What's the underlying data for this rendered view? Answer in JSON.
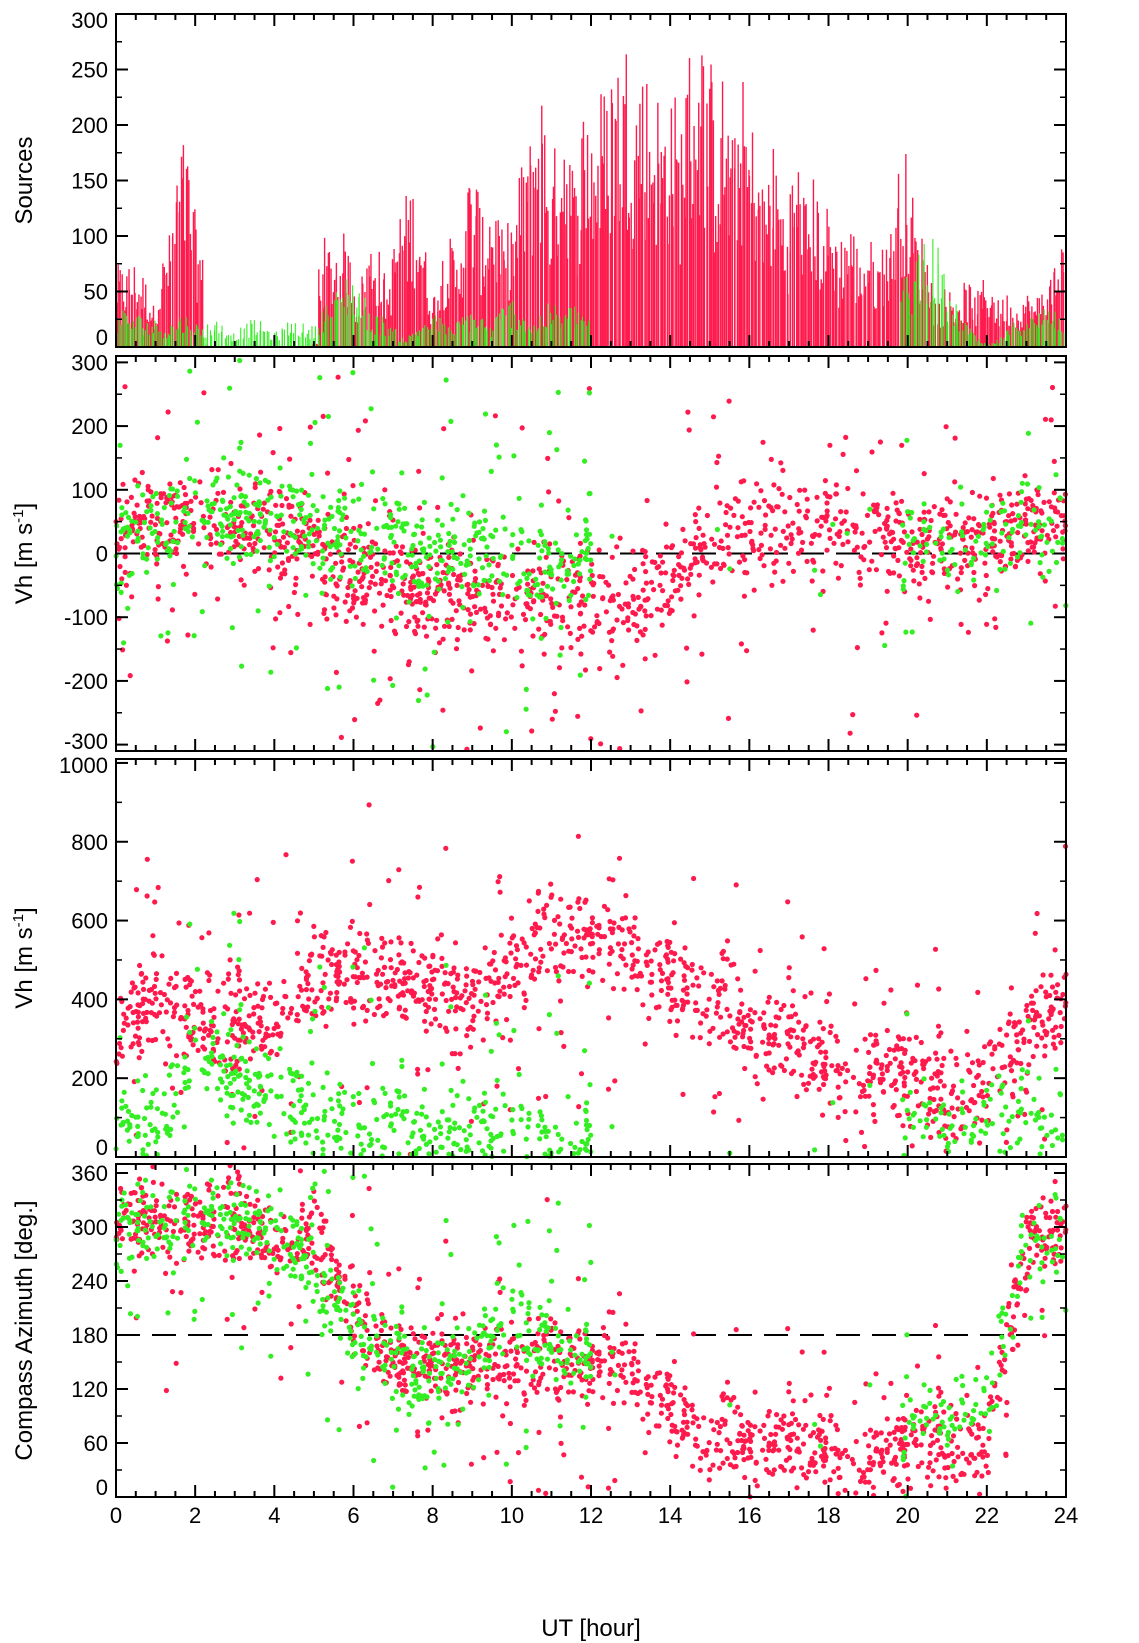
{
  "colors": {
    "primary": "#ff1a4d",
    "secondary": "#33ee22",
    "axis": "#000000"
  },
  "chart_data": [
    {
      "type": "bar",
      "ylabel": "Sources",
      "xlim": [
        0,
        24
      ],
      "ylim": [
        0,
        300
      ],
      "yticks": [
        "0",
        "50",
        "100",
        "150",
        "200",
        "250",
        "300"
      ],
      "series": [
        {
          "color": "#ff1a4d",
          "peaks": [
            [
              0.1,
              75
            ],
            [
              0.4,
              80
            ],
            [
              0.6,
              70
            ],
            [
              1.4,
              105
            ],
            [
              1.7,
              190
            ],
            [
              1.9,
              125
            ],
            [
              5.3,
              100
            ],
            [
              5.7,
              105
            ],
            [
              6.5,
              100
            ],
            [
              7.3,
              140
            ],
            [
              7.5,
              150
            ],
            [
              8.4,
              100
            ],
            [
              9.0,
              165
            ],
            [
              9.5,
              145
            ],
            [
              10.0,
              120
            ],
            [
              10.4,
              195
            ],
            [
              10.7,
              245
            ],
            [
              11.3,
              230
            ],
            [
              11.9,
              235
            ],
            [
              12.3,
              240
            ],
            [
              12.6,
              280
            ],
            [
              12.9,
              285
            ],
            [
              13.3,
              270
            ],
            [
              13.6,
              245
            ],
            [
              14.0,
              250
            ],
            [
              14.5,
              275
            ],
            [
              14.7,
              300
            ],
            [
              14.9,
              285
            ],
            [
              15.3,
              250
            ],
            [
              15.8,
              245
            ],
            [
              16.1,
              205
            ],
            [
              16.6,
              185
            ],
            [
              17.2,
              175
            ],
            [
              17.6,
              155
            ],
            [
              18.0,
              130
            ],
            [
              18.5,
              120
            ],
            [
              19.0,
              100
            ],
            [
              19.5,
              110
            ],
            [
              19.9,
              180
            ],
            [
              20.3,
              105
            ],
            [
              21.0,
              55
            ],
            [
              21.5,
              60
            ],
            [
              22.0,
              65
            ],
            [
              22.5,
              50
            ],
            [
              23.0,
              50
            ],
            [
              23.5,
              60
            ],
            [
              23.9,
              100
            ]
          ]
        },
        {
          "color": "#33ee22",
          "peaks": [
            [
              0.2,
              35
            ],
            [
              0.6,
              30
            ],
            [
              1.0,
              25
            ],
            [
              1.7,
              30
            ],
            [
              2.5,
              25
            ],
            [
              3.5,
              25
            ],
            [
              4.5,
              25
            ],
            [
              5.5,
              45
            ],
            [
              5.9,
              70
            ],
            [
              6.6,
              30
            ],
            [
              8.0,
              30
            ],
            [
              9.0,
              35
            ],
            [
              10.0,
              45
            ],
            [
              11.0,
              40
            ],
            [
              11.6,
              40
            ],
            [
              20.2,
              80
            ],
            [
              20.5,
              110
            ],
            [
              21.0,
              45
            ],
            [
              23.0,
              30
            ],
            [
              23.6,
              40
            ]
          ]
        }
      ]
    },
    {
      "type": "scatter",
      "ylabel": "Vh [m s-1]",
      "xlim": [
        0,
        24
      ],
      "ylim": [
        -310,
        310
      ],
      "yticks": [
        "-300",
        "-200",
        "-100",
        "0",
        "100",
        "200",
        "300"
      ],
      "reference_line": 0,
      "series": [
        {
          "color": "#ff1a4d",
          "trend": [
            [
              0,
              30
            ],
            [
              1,
              40
            ],
            [
              2,
              60
            ],
            [
              3,
              40
            ],
            [
              5,
              10
            ],
            [
              6,
              -30
            ],
            [
              8,
              -60
            ],
            [
              10,
              -70
            ],
            [
              12,
              -80
            ],
            [
              13,
              -90
            ],
            [
              14,
              -40
            ],
            [
              15,
              20
            ],
            [
              16,
              30
            ],
            [
              18,
              40
            ],
            [
              19,
              40
            ],
            [
              20,
              20
            ],
            [
              22,
              20
            ],
            [
              23,
              40
            ],
            [
              24,
              60
            ]
          ]
        },
        {
          "color": "#33ee22",
          "trend": [
            [
              0,
              20
            ],
            [
              2,
              60
            ],
            [
              3,
              55
            ],
            [
              4,
              55
            ],
            [
              5,
              40
            ],
            [
              7,
              10
            ],
            [
              9,
              0
            ],
            [
              10,
              -20
            ],
            [
              12,
              0
            ],
            [
              20,
              10
            ],
            [
              22,
              10
            ],
            [
              24,
              40
            ]
          ]
        }
      ]
    },
    {
      "type": "scatter",
      "ylabel": "Vh [m s-1]",
      "xlim": [
        0,
        24
      ],
      "ylim": [
        0,
        1010
      ],
      "yticks": [
        "0",
        "200",
        "400",
        "600",
        "800",
        "1000"
      ],
      "series": [
        {
          "color": "#ff1a4d",
          "trend": [
            [
              0,
              300
            ],
            [
              1,
              400
            ],
            [
              2,
              350
            ],
            [
              3,
              300
            ],
            [
              5,
              450
            ],
            [
              7,
              450
            ],
            [
              9,
              400
            ],
            [
              10,
              500
            ],
            [
              11,
              570
            ],
            [
              12,
              560
            ],
            [
              13,
              520
            ],
            [
              14,
              450
            ],
            [
              15,
              400
            ],
            [
              16,
              320
            ],
            [
              17,
              300
            ],
            [
              18,
              220
            ],
            [
              19,
              220
            ],
            [
              20,
              220
            ],
            [
              21,
              150
            ],
            [
              22,
              200
            ],
            [
              23,
              300
            ],
            [
              24,
              400
            ]
          ]
        },
        {
          "color": "#33ee22",
          "trend": [
            [
              0,
              60
            ],
            [
              1,
              80
            ],
            [
              2,
              240
            ],
            [
              3,
              200
            ],
            [
              4,
              150
            ],
            [
              5,
              100
            ],
            [
              6,
              60
            ],
            [
              8,
              50
            ],
            [
              10,
              40
            ],
            [
              12,
              30
            ],
            [
              20,
              90
            ],
            [
              22,
              80
            ],
            [
              24,
              80
            ]
          ]
        }
      ]
    },
    {
      "type": "scatter",
      "ylabel": "Compass Azimuth [deg.]",
      "xlabel": "UT [hour]",
      "xlim": [
        0,
        24
      ],
      "ylim": [
        0,
        370
      ],
      "yticks": [
        "0",
        "60",
        "120",
        "180",
        "240",
        "300",
        "360"
      ],
      "xticks": [
        "0",
        "2",
        "4",
        "6",
        "8",
        "10",
        "12",
        "14",
        "16",
        "18",
        "20",
        "22",
        "24"
      ],
      "reference_line": 180,
      "series": [
        {
          "color": "#ff1a4d",
          "trend": [
            [
              0,
              310
            ],
            [
              2,
              300
            ],
            [
              5,
              290
            ],
            [
              6,
              200
            ],
            [
              7,
              150
            ],
            [
              9,
              150
            ],
            [
              10,
              155
            ],
            [
              12,
              150
            ],
            [
              13,
              140
            ],
            [
              14,
              100
            ],
            [
              15,
              60
            ],
            [
              16,
              60
            ],
            [
              17,
              60
            ],
            [
              18,
              50
            ],
            [
              19,
              40
            ],
            [
              20,
              60
            ],
            [
              22,
              60
            ],
            [
              23,
              280
            ],
            [
              24,
              300
            ]
          ]
        },
        {
          "color": "#33ee22",
          "trend": [
            [
              0,
              300
            ],
            [
              2,
              310
            ],
            [
              4,
              300
            ],
            [
              6,
              200
            ],
            [
              7,
              140
            ],
            [
              9,
              150
            ],
            [
              10,
              200
            ],
            [
              12,
              150
            ],
            [
              20,
              80
            ],
            [
              22,
              100
            ],
            [
              23,
              280
            ],
            [
              24,
              280
            ]
          ]
        }
      ]
    }
  ]
}
